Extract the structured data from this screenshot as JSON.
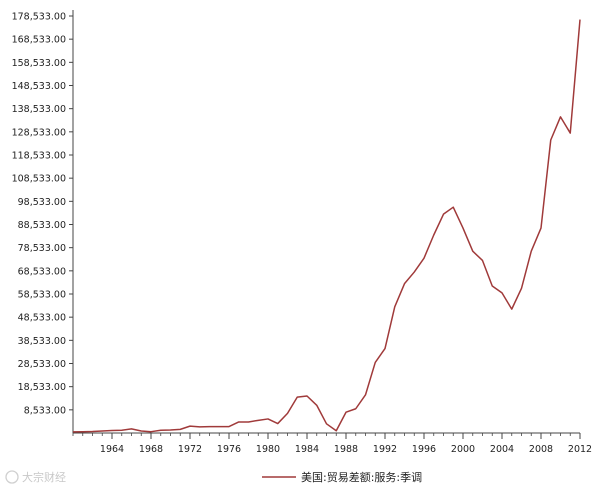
{
  "chart_data": {
    "type": "line",
    "title": "",
    "xlabel": "",
    "ylabel": "",
    "x_tick_labels": [
      "1964",
      "1968",
      "1972",
      "1976",
      "1980",
      "1984",
      "1988",
      "1992",
      "1996",
      "2000",
      "2004",
      "2008",
      "2012"
    ],
    "y_tick_labels": [
      "8,533.00",
      "18,533.00",
      "28,533.00",
      "38,533.00",
      "48,533.00",
      "58,533.00",
      "68,533.00",
      "78,533.00",
      "88,533.00",
      "98,533.00",
      "108,533.00",
      "118,533.00",
      "128,533.00",
      "138,533.00",
      "148,533.00",
      "158,533.00",
      "168,533.00",
      "178,533.00"
    ],
    "xlim": [
      1960,
      2012
    ],
    "ylim": [
      -1467,
      178533
    ],
    "grid": false,
    "legend_position": "bottom-center",
    "series": [
      {
        "name": "美国:贸易差额:服务:季调",
        "color": "#a03a3a",
        "x": [
          1960,
          1961,
          1962,
          1963,
          1964,
          1965,
          1966,
          1967,
          1968,
          1969,
          1970,
          1971,
          1972,
          1973,
          1974,
          1975,
          1976,
          1977,
          1978,
          1979,
          1980,
          1981,
          1982,
          1983,
          1984,
          1985,
          1986,
          1987,
          1988,
          1989,
          1990,
          1991,
          1992,
          1993,
          1994,
          1995,
          1996,
          1997,
          1998,
          1999,
          2000,
          2001,
          2002,
          2003,
          2004,
          2005,
          2006,
          2007,
          2008,
          2009,
          2010,
          2011,
          2012
        ],
        "values": [
          -1000,
          -900,
          -800,
          -600,
          -400,
          -300,
          300,
          -600,
          -900,
          -300,
          -200,
          100,
          1500,
          1200,
          1300,
          1300,
          1300,
          3300,
          3300,
          4000,
          4600,
          2600,
          7000,
          14000,
          14500,
          10500,
          2500,
          -500,
          7500,
          9000,
          15000,
          29000,
          35000,
          53000,
          63000,
          68000,
          74000,
          84000,
          93000,
          96000,
          87000,
          77000,
          73000,
          62000,
          59000,
          52000,
          61000,
          77000,
          87000,
          125000,
          135000,
          128000,
          177000
        ]
      }
    ]
  },
  "watermark": {
    "text": "大宗财经"
  }
}
